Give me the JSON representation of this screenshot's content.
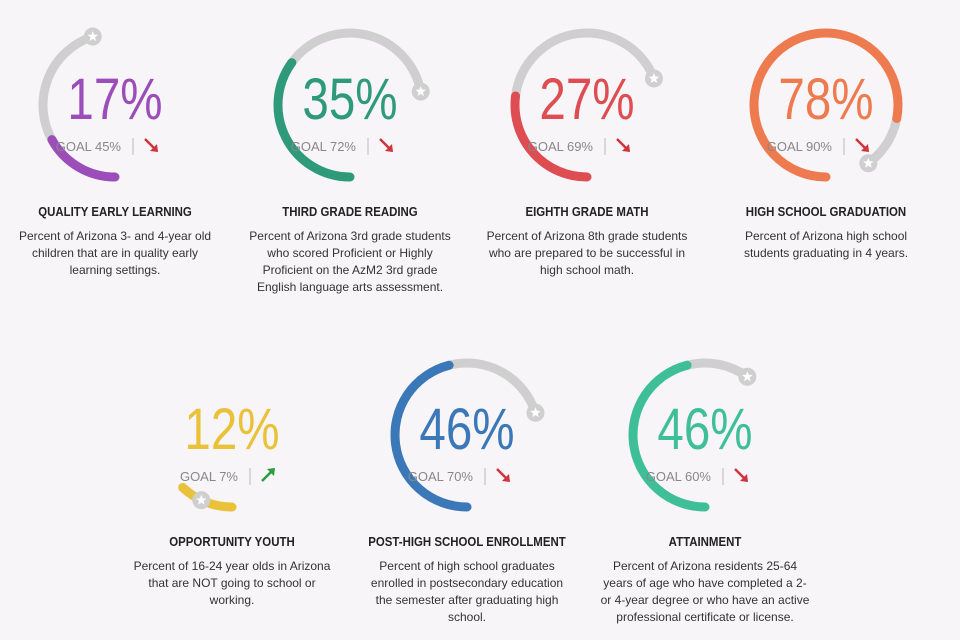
{
  "indicators": [
    {
      "title": "QUALITY EARLY LEARNING",
      "description": "Percent of Arizona 3- and 4-year old children that are in quality early learning settings.",
      "value": 17,
      "value_label": "17%",
      "goal": 45,
      "goal_label": "GOAL 45%",
      "trend": "down",
      "color": "#9b4dba"
    },
    {
      "title": "THIRD GRADE READING",
      "description": "Percent of Arizona 3rd grade students who scored Proficient or Highly Proficient on the AzM2 3rd grade English language arts assessment.",
      "value": 35,
      "value_label": "35%",
      "goal": 72,
      "goal_label": "GOAL 72%",
      "trend": "down",
      "color": "#2e9a7a"
    },
    {
      "title": "EIGHTH GRADE MATH",
      "description": "Percent of Arizona 8th grade students who are prepared to be successful in high school math.",
      "value": 27,
      "value_label": "27%",
      "goal": 69,
      "goal_label": "GOAL 69%",
      "trend": "down",
      "color": "#dd4d52"
    },
    {
      "title": "HIGH SCHOOL GRADUATION",
      "description": "Percent of Arizona high school students graduating in 4 years.",
      "value": 78,
      "value_label": "78%",
      "goal": 90,
      "goal_label": "GOAL 90%",
      "trend": "down",
      "color": "#ee7b4f"
    },
    {
      "title": "OPPORTUNITY YOUTH",
      "description": "Percent of 16-24 year olds in Arizona that are NOT going to school or working.",
      "value": 12,
      "value_label": "12%",
      "goal": 7,
      "goal_label": "GOAL 7%",
      "trend": "up",
      "color": "#e9c23a"
    },
    {
      "title": "POST-HIGH SCHOOL ENROLLMENT",
      "description": "Percent of high school graduates enrolled in postsecondary education the semester after graduating high school.",
      "value": 46,
      "value_label": "46%",
      "goal": 70,
      "goal_label": "GOAL 70%",
      "trend": "down",
      "color": "#3a78b8"
    },
    {
      "title": "ATTAINMENT",
      "description": "Percent of Arizona residents 25-64 years of age who have completed a 2- or 4-year degree or who have an active professional certificate or license.",
      "value": 46,
      "value_label": "46%",
      "goal": 60,
      "goal_label": "GOAL 60%",
      "trend": "down",
      "color": "#3fbf97"
    }
  ]
}
